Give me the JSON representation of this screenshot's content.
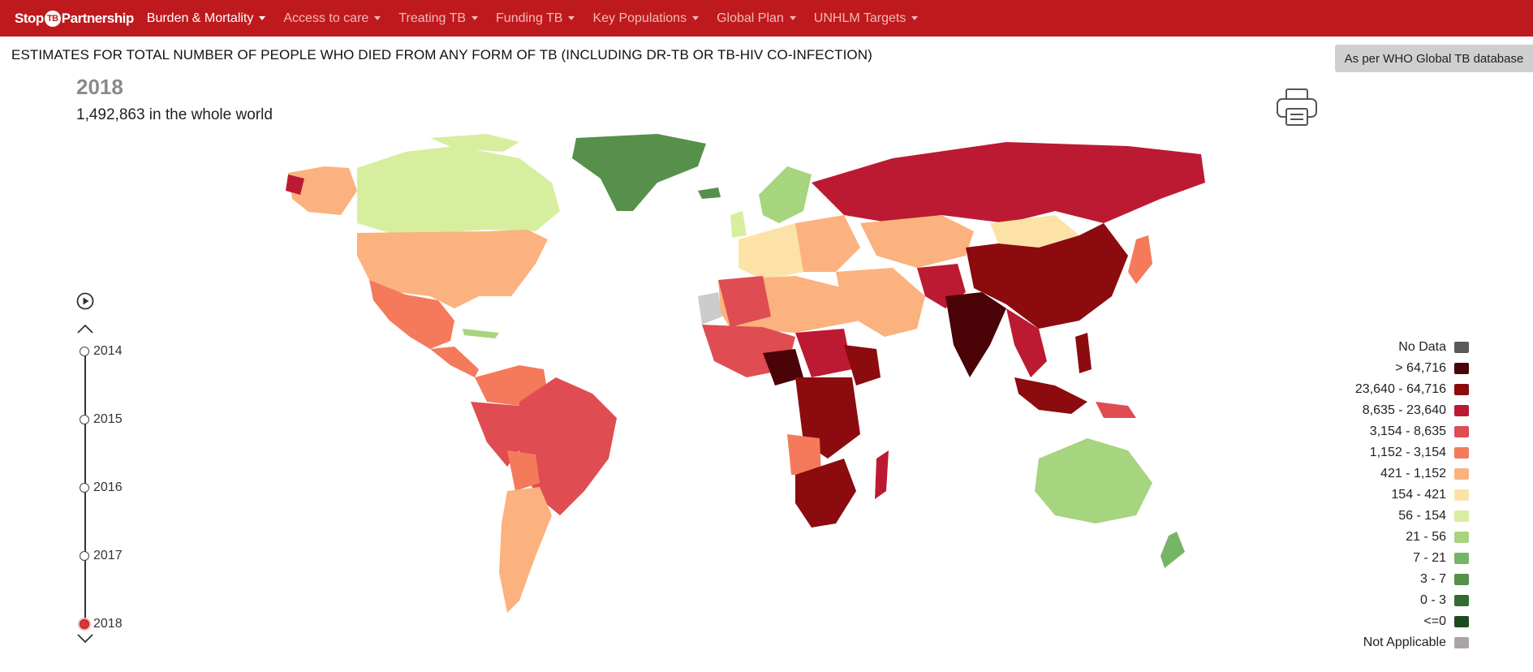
{
  "nav": {
    "logo_part1": "Stop",
    "logo_badge": "TB",
    "logo_part2": "Partnership",
    "items": [
      {
        "label": "Burden & Mortality"
      },
      {
        "label": "Access to care"
      },
      {
        "label": "Treating TB"
      },
      {
        "label": "Funding TB"
      },
      {
        "label": "Key Populations"
      },
      {
        "label": "Global Plan"
      },
      {
        "label": "UNHLM Targets"
      }
    ],
    "active_index": 0
  },
  "header": {
    "title": "ESTIMATES FOR TOTAL NUMBER OF PEOPLE WHO DIED FROM ANY FORM OF TB (INCLUDING DR-TB OR TB-HIV CO-INFECTION)",
    "db_button": "As per WHO Global TB database"
  },
  "summary": {
    "year": "2018",
    "world_total": "1,492,863 in the whole world"
  },
  "timeline": {
    "years": [
      "2014",
      "2015",
      "2016",
      "2017",
      "2018"
    ],
    "selected": "2018"
  },
  "legend": [
    {
      "label": "No Data",
      "color": "#5a5a5a"
    },
    {
      "label": "> 64,716",
      "color": "#4a0306"
    },
    {
      "label": "23,640 - 64,716",
      "color": "#8b0b0e"
    },
    {
      "label": "8,635 - 23,640",
      "color": "#bc1a32"
    },
    {
      "label": "3,154 - 8,635",
      "color": "#df4c52"
    },
    {
      "label": "1,152 - 3,154",
      "color": "#f47a5b"
    },
    {
      "label": "421 - 1,152",
      "color": "#fbb27e"
    },
    {
      "label": "154 - 421",
      "color": "#fde2a8"
    },
    {
      "label": "56 - 154",
      "color": "#d7ee9f"
    },
    {
      "label": "21 - 56",
      "color": "#a6d47f"
    },
    {
      "label": "7 - 21",
      "color": "#77b566"
    },
    {
      "label": "3 - 7",
      "color": "#56904a"
    },
    {
      "label": "0 - 3",
      "color": "#356b32"
    },
    {
      "label": "<=0",
      "color": "#1e4a22"
    },
    {
      "label": "Not Applicable",
      "color": "#aaa5a5"
    }
  ]
}
